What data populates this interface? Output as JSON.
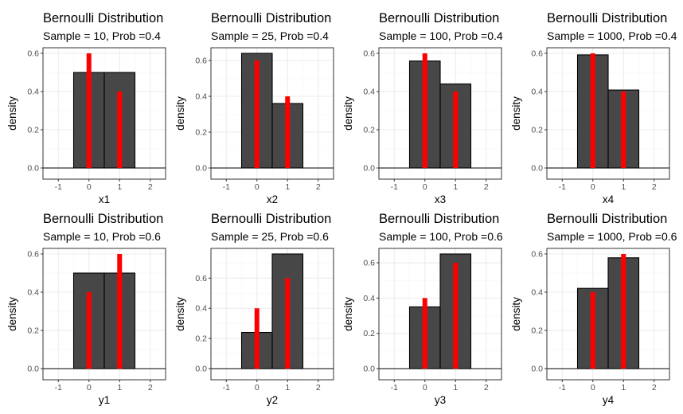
{
  "chart_data": [
    {
      "type": "bar",
      "title": "Bernoulli Distribution",
      "subtitle": "Sample = 10, Prob =0.4",
      "xlabel": "x1",
      "ylabel": "density",
      "xlim": [
        -1.5,
        2.5
      ],
      "ylim": [
        0,
        0.6
      ],
      "x_ticks": [
        "-1",
        "0",
        "1",
        "2"
      ],
      "y_ticks": [
        "0.0",
        "0.2",
        "0.4",
        "0.6"
      ],
      "series": [
        {
          "type": "histogram",
          "bins": [
            {
              "x0": -1.5,
              "x1": -0.5,
              "value": 0
            },
            {
              "x0": -0.5,
              "x1": 0.5,
              "value": 0.5
            },
            {
              "x0": 0.5,
              "x1": 1.5,
              "value": 0.5
            },
            {
              "x0": 1.5,
              "x1": 2.5,
              "value": 0
            }
          ],
          "color": "#474747"
        },
        {
          "type": "pmf",
          "x": [
            0,
            1
          ],
          "values": [
            0.6,
            0.4
          ],
          "color": "#ff0000"
        }
      ]
    },
    {
      "type": "bar",
      "title": "Bernoulli Distribution",
      "subtitle": "Sample = 25, Prob =0.4",
      "xlabel": "x2",
      "ylabel": "density",
      "xlim": [
        -1.5,
        2.5
      ],
      "ylim": [
        0,
        0.64
      ],
      "x_ticks": [
        "-1",
        "0",
        "1",
        "2"
      ],
      "y_ticks": [
        "0.0",
        "0.2",
        "0.4",
        "0.6"
      ],
      "series": [
        {
          "type": "histogram",
          "bins": [
            {
              "x0": -1.5,
              "x1": -0.5,
              "value": 0
            },
            {
              "x0": -0.5,
              "x1": 0.5,
              "value": 0.64
            },
            {
              "x0": 0.5,
              "x1": 1.5,
              "value": 0.36
            },
            {
              "x0": 1.5,
              "x1": 2.5,
              "value": 0
            }
          ],
          "color": "#474747"
        },
        {
          "type": "pmf",
          "x": [
            0,
            1
          ],
          "values": [
            0.6,
            0.4
          ],
          "color": "#ff0000"
        }
      ]
    },
    {
      "type": "bar",
      "title": "Bernoulli Distribution",
      "subtitle": "Sample = 100, Prob =0.4",
      "xlabel": "x3",
      "ylabel": "density",
      "xlim": [
        -1.5,
        2.5
      ],
      "ylim": [
        0,
        0.6
      ],
      "x_ticks": [
        "-1",
        "0",
        "1",
        "2"
      ],
      "y_ticks": [
        "0.0",
        "0.2",
        "0.4",
        "0.6"
      ],
      "series": [
        {
          "type": "histogram",
          "bins": [
            {
              "x0": -1.5,
              "x1": -0.5,
              "value": 0
            },
            {
              "x0": -0.5,
              "x1": 0.5,
              "value": 0.56
            },
            {
              "x0": 0.5,
              "x1": 1.5,
              "value": 0.44
            },
            {
              "x0": 1.5,
              "x1": 2.5,
              "value": 0
            }
          ],
          "color": "#474747"
        },
        {
          "type": "pmf",
          "x": [
            0,
            1
          ],
          "values": [
            0.6,
            0.4
          ],
          "color": "#ff0000"
        }
      ]
    },
    {
      "type": "bar",
      "title": "Bernoulli Distribution",
      "subtitle": "Sample = 1000, Prob =0.4",
      "xlabel": "x4",
      "ylabel": "density",
      "xlim": [
        -1.5,
        2.5
      ],
      "ylim": [
        0,
        0.6
      ],
      "x_ticks": [
        "-1",
        "0",
        "1",
        "2"
      ],
      "y_ticks": [
        "0.0",
        "0.2",
        "0.4",
        "0.6"
      ],
      "series": [
        {
          "type": "histogram",
          "bins": [
            {
              "x0": -1.5,
              "x1": -0.5,
              "value": 0
            },
            {
              "x0": -0.5,
              "x1": 0.5,
              "value": 0.592
            },
            {
              "x0": 0.5,
              "x1": 1.5,
              "value": 0.408
            },
            {
              "x0": 1.5,
              "x1": 2.5,
              "value": 0
            }
          ],
          "color": "#474747"
        },
        {
          "type": "pmf",
          "x": [
            0,
            1
          ],
          "values": [
            0.6,
            0.4
          ],
          "color": "#ff0000"
        }
      ]
    },
    {
      "type": "bar",
      "title": "Bernoulli Distribution",
      "subtitle": "Sample = 10, Prob =0.6",
      "xlabel": "y1",
      "ylabel": "density",
      "xlim": [
        -1.5,
        2.5
      ],
      "ylim": [
        0,
        0.6
      ],
      "x_ticks": [
        "-1",
        "0",
        "1",
        "2"
      ],
      "y_ticks": [
        "0.0",
        "0.2",
        "0.4",
        "0.6"
      ],
      "series": [
        {
          "type": "histogram",
          "bins": [
            {
              "x0": -1.5,
              "x1": -0.5,
              "value": 0
            },
            {
              "x0": -0.5,
              "x1": 0.5,
              "value": 0.5
            },
            {
              "x0": 0.5,
              "x1": 1.5,
              "value": 0.5
            },
            {
              "x0": 1.5,
              "x1": 2.5,
              "value": 0
            }
          ],
          "color": "#474747"
        },
        {
          "type": "pmf",
          "x": [
            0,
            1
          ],
          "values": [
            0.4,
            0.6
          ],
          "color": "#ff0000"
        }
      ]
    },
    {
      "type": "bar",
      "title": "Bernoulli Distribution",
      "subtitle": "Sample = 25, Prob =0.6",
      "xlabel": "y2",
      "ylabel": "density",
      "xlim": [
        -1.5,
        2.5
      ],
      "ylim": [
        0,
        0.76
      ],
      "x_ticks": [
        "-1",
        "0",
        "1",
        "2"
      ],
      "y_ticks": [
        "0.0",
        "0.2",
        "0.4",
        "0.6"
      ],
      "series": [
        {
          "type": "histogram",
          "bins": [
            {
              "x0": -1.5,
              "x1": -0.5,
              "value": 0
            },
            {
              "x0": -0.5,
              "x1": 0.5,
              "value": 0.24
            },
            {
              "x0": 0.5,
              "x1": 1.5,
              "value": 0.76
            },
            {
              "x0": 1.5,
              "x1": 2.5,
              "value": 0
            }
          ],
          "color": "#474747"
        },
        {
          "type": "pmf",
          "x": [
            0,
            1
          ],
          "values": [
            0.4,
            0.6
          ],
          "color": "#ff0000"
        }
      ]
    },
    {
      "type": "bar",
      "title": "Bernoulli Distribution",
      "subtitle": "Sample = 100, Prob =0.6",
      "xlabel": "y3",
      "ylabel": "density",
      "xlim": [
        -1.5,
        2.5
      ],
      "ylim": [
        0,
        0.65
      ],
      "x_ticks": [
        "-1",
        "0",
        "1",
        "2"
      ],
      "y_ticks": [
        "0.0",
        "0.2",
        "0.4",
        "0.6"
      ],
      "series": [
        {
          "type": "histogram",
          "bins": [
            {
              "x0": -1.5,
              "x1": -0.5,
              "value": 0
            },
            {
              "x0": -0.5,
              "x1": 0.5,
              "value": 0.35
            },
            {
              "x0": 0.5,
              "x1": 1.5,
              "value": 0.65
            },
            {
              "x0": 1.5,
              "x1": 2.5,
              "value": 0
            }
          ],
          "color": "#474747"
        },
        {
          "type": "pmf",
          "x": [
            0,
            1
          ],
          "values": [
            0.4,
            0.6
          ],
          "color": "#ff0000"
        }
      ]
    },
    {
      "type": "bar",
      "title": "Bernoulli Distribution",
      "subtitle": "Sample = 1000, Prob =0.6",
      "xlabel": "y4",
      "ylabel": "density",
      "xlim": [
        -1.5,
        2.5
      ],
      "ylim": [
        0,
        0.6
      ],
      "x_ticks": [
        "-1",
        "0",
        "1",
        "2"
      ],
      "y_ticks": [
        "0.0",
        "0.2",
        "0.4",
        "0.6"
      ],
      "series": [
        {
          "type": "histogram",
          "bins": [
            {
              "x0": -1.5,
              "x1": -0.5,
              "value": 0
            },
            {
              "x0": -0.5,
              "x1": 0.5,
              "value": 0.42
            },
            {
              "x0": 0.5,
              "x1": 1.5,
              "value": 0.58
            },
            {
              "x0": 1.5,
              "x1": 2.5,
              "value": 0
            }
          ],
          "color": "#474747"
        },
        {
          "type": "pmf",
          "x": [
            0,
            1
          ],
          "values": [
            0.4,
            0.6
          ],
          "color": "#ff0000"
        }
      ]
    }
  ],
  "theme": {
    "grid_major": "#ebebeb",
    "grid_minor": "#f5f5f5",
    "panel_border": "#333333",
    "bar_outline": "#000000"
  }
}
